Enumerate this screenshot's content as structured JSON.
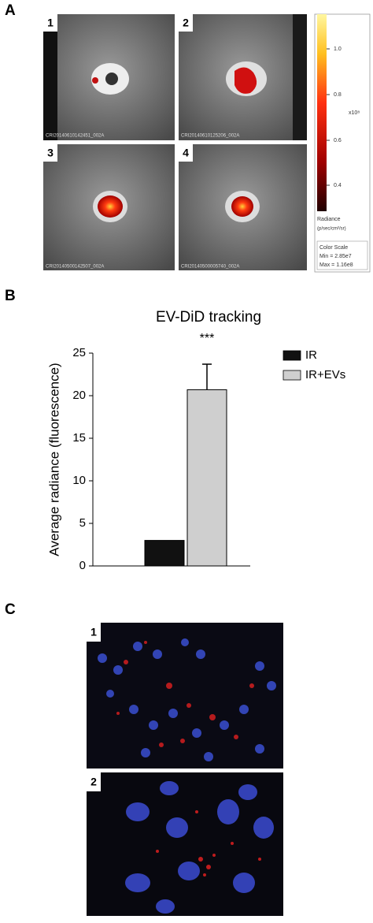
{
  "panel_labels": [
    "A",
    "B",
    "C"
  ],
  "panel_a": {
    "images": [
      {
        "label": "1",
        "caption": "CRI20140610142451_002A"
      },
      {
        "label": "2",
        "caption": "CRI20140610125206_002A"
      },
      {
        "label": "3",
        "caption": "CRI20140500142507_002A"
      },
      {
        "label": "4",
        "caption": "CRI20140500005740_002A"
      }
    ],
    "color_scale": {
      "ticks": [
        {
          "value": 1.0,
          "label": "1.0"
        },
        {
          "value": 0.8,
          "label": "0.8"
        },
        {
          "value": 0.6,
          "label": "0.6"
        },
        {
          "value": 0.4,
          "label": "0.4"
        }
      ],
      "multiplier": "x10⁸",
      "unit_title": "Radiance",
      "unit": "(p/sec/cm²/sr)",
      "box_title": "Color Scale",
      "min": "Min = 2.85e7",
      "max": "Max = 1.16e8"
    }
  },
  "chart_data": {
    "type": "bar",
    "title": "EV-DiD tracking",
    "y_label": "Average radiance (fluorescence)",
    "categories": [
      null
    ],
    "series": [
      {
        "name": "IR",
        "color": "#111111",
        "values": [
          3.0
        ]
      },
      {
        "name": "IR+EVs",
        "color": "#cfcfcf",
        "values": [
          20.7
        ],
        "errors": [
          3.0
        ]
      }
    ],
    "annotations": [
      "***"
    ],
    "ylim": [
      0,
      25
    ],
    "yticks": [
      0,
      5,
      10,
      15,
      20,
      25
    ],
    "legend": "top-right"
  },
  "panel_c": {
    "images": [
      {
        "label": "1"
      },
      {
        "label": "2"
      }
    ]
  }
}
